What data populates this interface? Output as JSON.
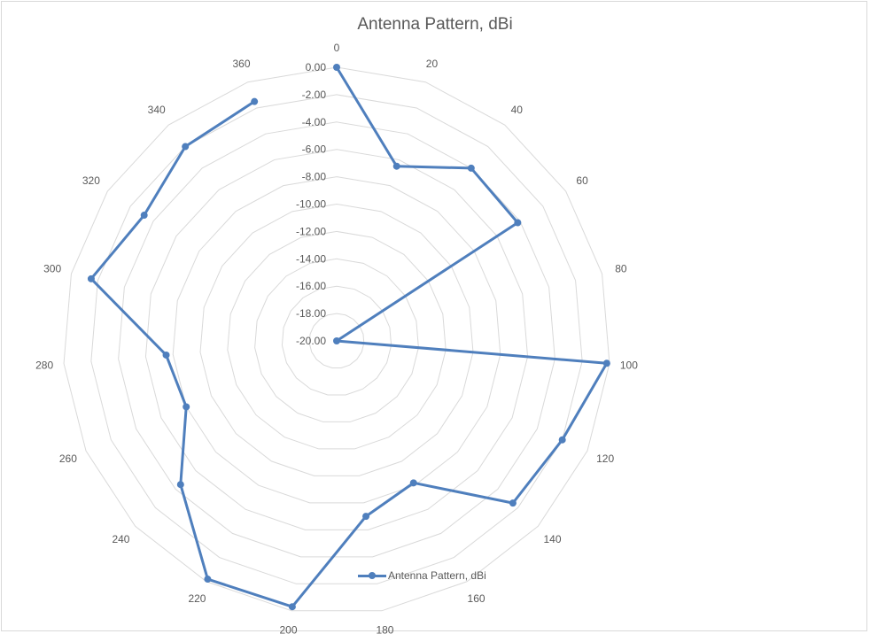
{
  "chart_data": {
    "type": "radar",
    "title": "Antenna Pattern, dBi",
    "categories": [
      "0",
      "20",
      "40",
      "60",
      "80",
      "100",
      "120",
      "140",
      "160",
      "180",
      "200",
      "220",
      "240",
      "260",
      "280",
      "300",
      "320",
      "340",
      "360"
    ],
    "radial_ticks": [
      "0.00",
      "-2.00",
      "-4.00",
      "-6.00",
      "-8.00",
      "-10.00",
      "-12.00",
      "-14.00",
      "-16.00",
      "-18.00",
      "-20.00"
    ],
    "rlim": [
      -20,
      0
    ],
    "grid": true,
    "legend_position": "bottom",
    "series": [
      {
        "name": "Antenna Pattern, dBi",
        "color": "#4f7fbd",
        "values": [
          0.0,
          -6.5,
          -4.0,
          -4.2,
          -20.0,
          -0.2,
          -2.0,
          -2.5,
          -8.2,
          -7.0,
          -0.3,
          -0.2,
          -4.5,
          -8.0,
          -7.5,
          -1.5,
          -3.2,
          -2.0,
          -1.5
        ]
      }
    ]
  }
}
